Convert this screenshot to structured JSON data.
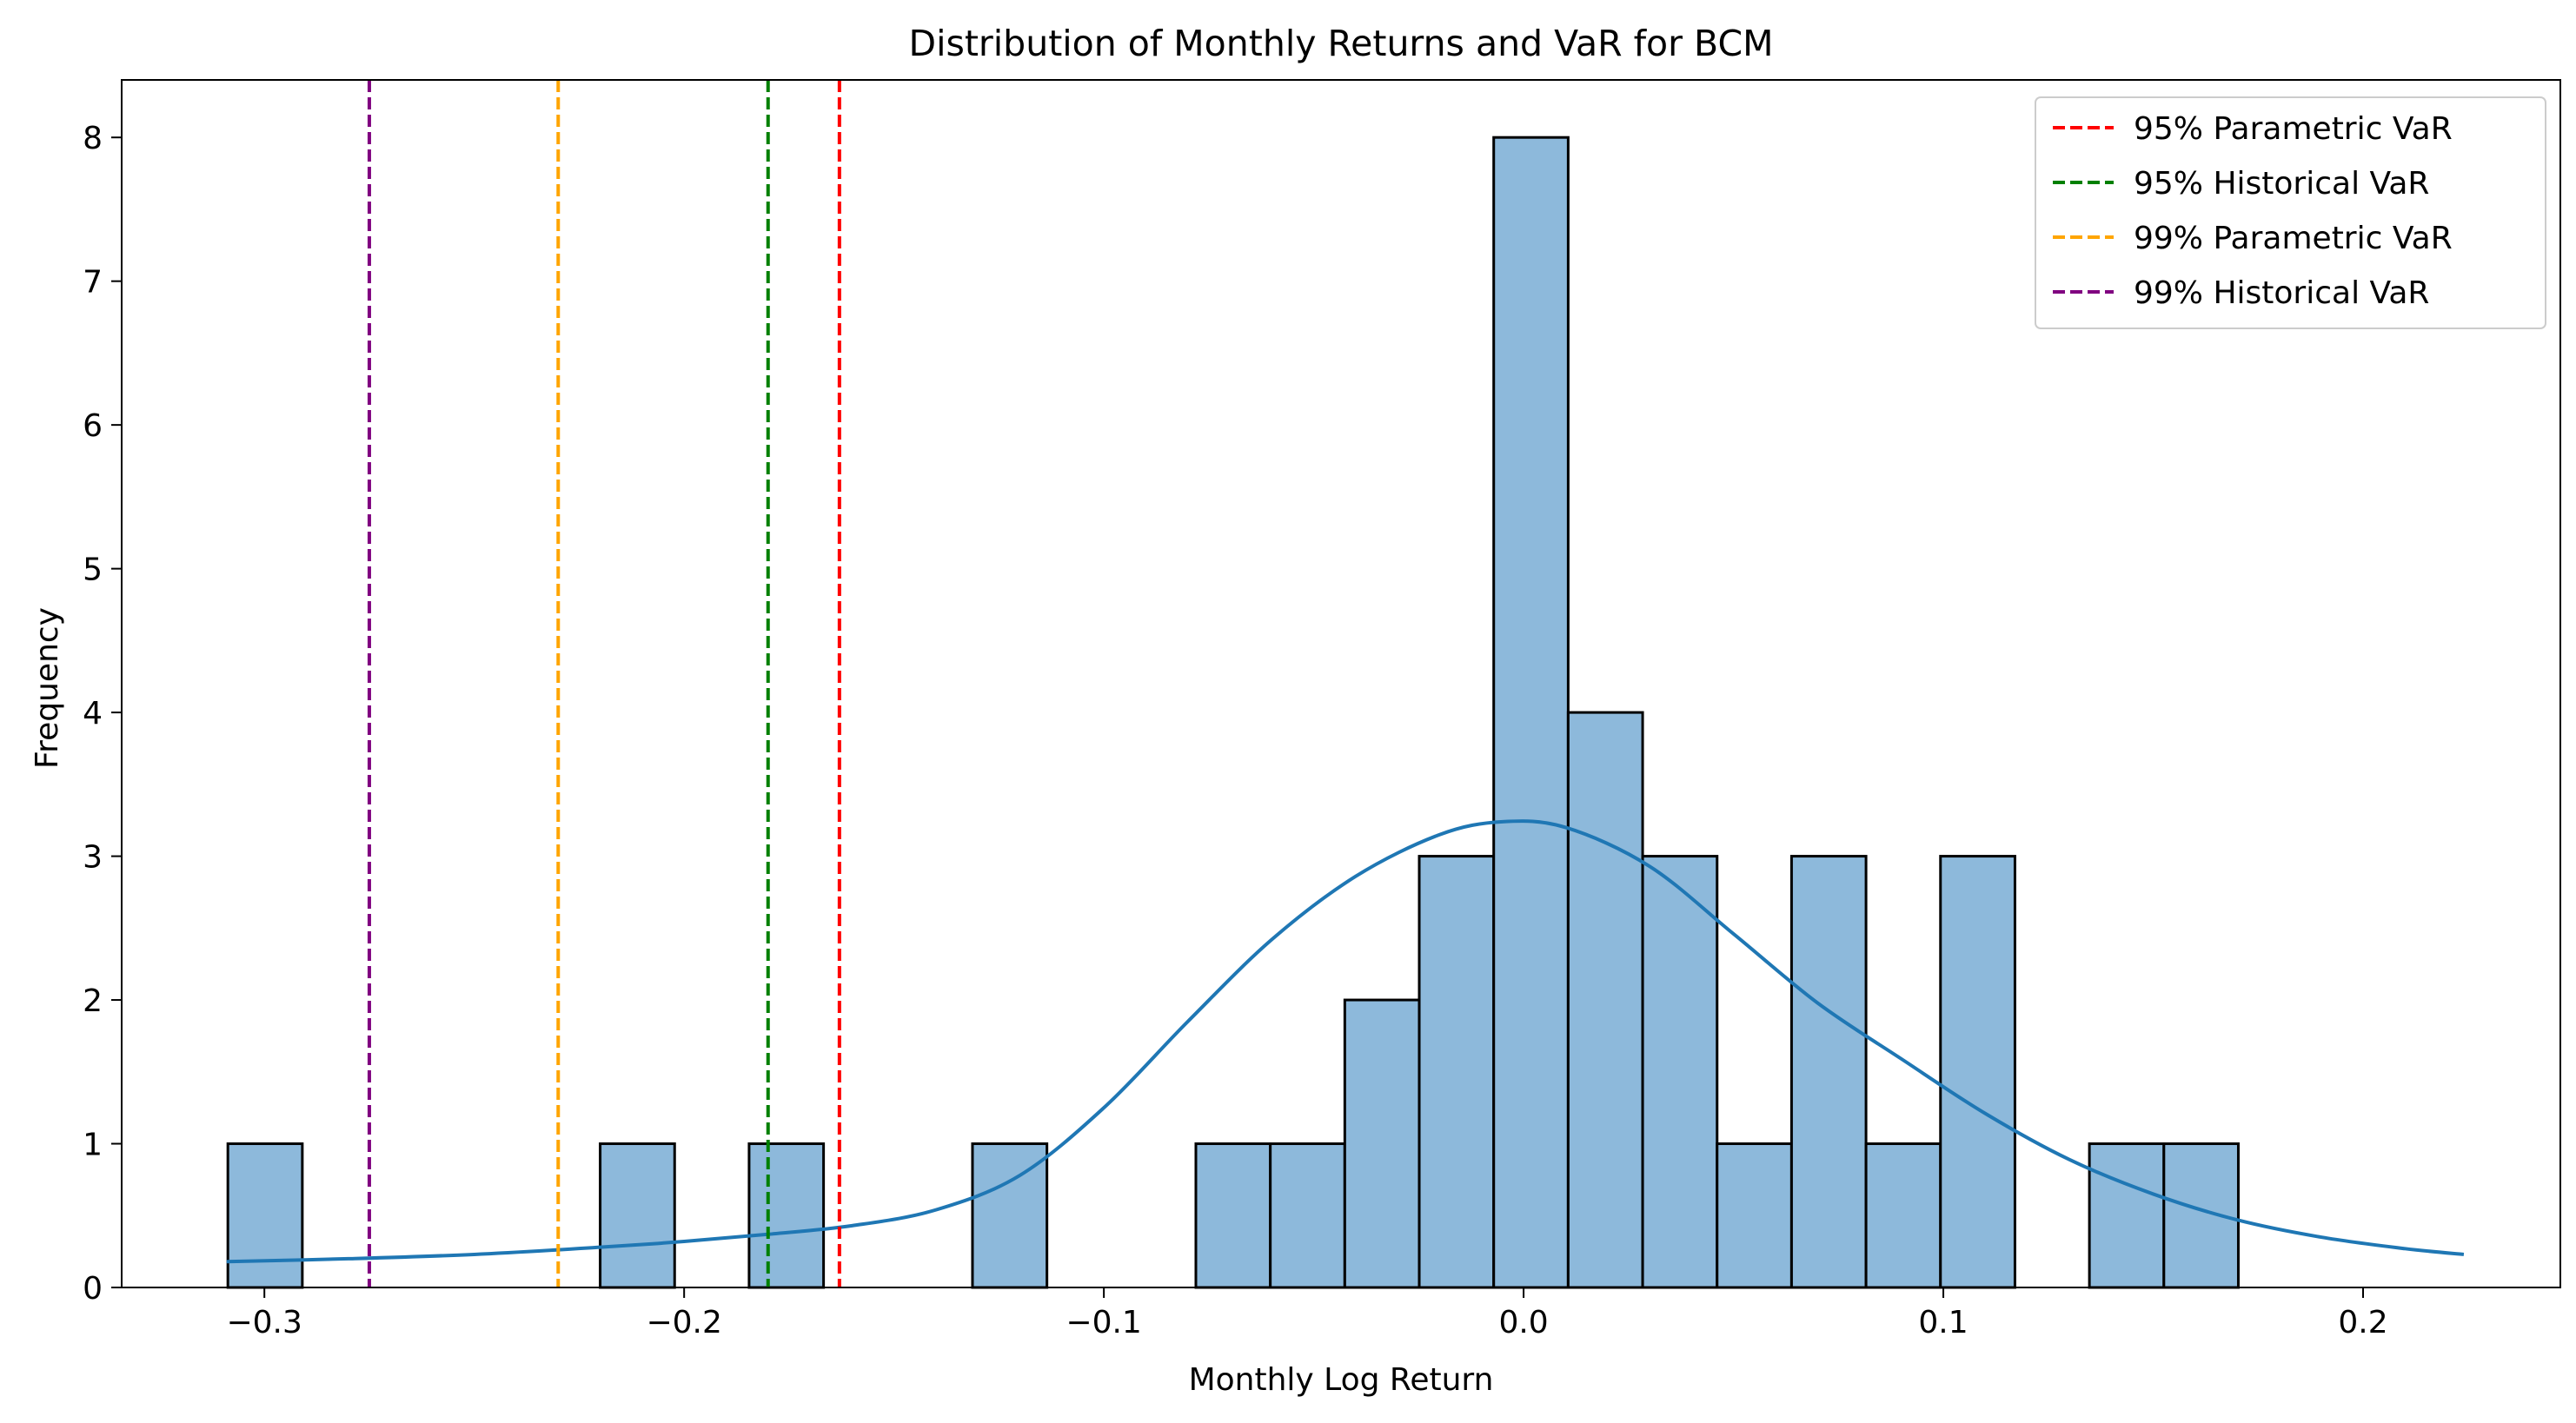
{
  "chart_data": {
    "type": "bar",
    "title": "Distribution of Monthly Returns and VaR for BCM",
    "xlabel": "Monthly Log Return",
    "ylabel": "Frequency",
    "xlim": [
      -0.334,
      0.247
    ],
    "ylim": [
      0,
      8.4
    ],
    "grid": false,
    "legend_position": "top-right",
    "x_ticks": [
      -0.3,
      -0.2,
      -0.1,
      0.0,
      0.1,
      0.2
    ],
    "x_tick_labels": [
      "−0.3",
      "−0.2",
      "−0.1",
      "0.0",
      "0.1",
      "0.2"
    ],
    "y_ticks": [
      0,
      1,
      2,
      3,
      4,
      5,
      6,
      7,
      8
    ],
    "y_tick_labels": [
      "0",
      "1",
      "2",
      "3",
      "4",
      "5",
      "6",
      "7",
      "8"
    ],
    "histogram": {
      "bin_start": -0.3087,
      "bin_width": 0.01774,
      "counts": [
        1,
        0,
        0,
        0,
        0,
        1,
        0,
        1,
        0,
        0,
        1,
        0,
        0,
        1,
        1,
        2,
        3,
        8,
        4,
        3,
        1,
        3,
        1,
        3,
        0,
        1,
        1,
        0,
        0,
        0
      ],
      "fill_color": "#8db9db",
      "edge_color": "#000000"
    },
    "kde": {
      "color": "#1f77b4",
      "x": [
        -0.309,
        -0.28,
        -0.25,
        -0.22,
        -0.2,
        -0.18,
        -0.16,
        -0.14,
        -0.12,
        -0.1,
        -0.08,
        -0.06,
        -0.04,
        -0.02,
        -0.005,
        0.01,
        0.03,
        0.05,
        0.07,
        0.09,
        0.11,
        0.13,
        0.15,
        0.17,
        0.19,
        0.21,
        0.224
      ],
      "y": [
        0.18,
        0.2,
        0.23,
        0.28,
        0.32,
        0.37,
        0.43,
        0.54,
        0.78,
        1.25,
        1.85,
        2.42,
        2.86,
        3.15,
        3.24,
        3.2,
        2.93,
        2.46,
        1.98,
        1.59,
        1.21,
        0.89,
        0.65,
        0.47,
        0.35,
        0.27,
        0.23
      ]
    },
    "var_lines": [
      {
        "name": "95% Parametric VaR",
        "value": -0.163,
        "color": "#ff0000"
      },
      {
        "name": "95% Historical VaR",
        "value": -0.18,
        "color": "#008000"
      },
      {
        "name": "99% Parametric VaR",
        "value": -0.23,
        "color": "#ffa500"
      },
      {
        "name": "99% Historical VaR",
        "value": -0.275,
        "color": "#800080"
      }
    ]
  }
}
